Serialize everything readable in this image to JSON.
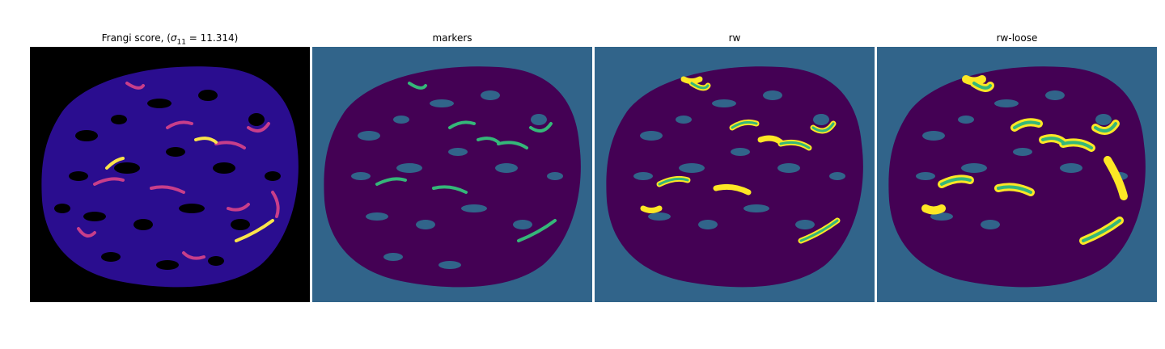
{
  "panels": [
    {
      "title_prefix": "Frangi score, (",
      "sigma_symbol": "σ",
      "sigma_sub": "11",
      "title_suffix": " = 11.314)"
    },
    {
      "title": "markers"
    },
    {
      "title": "rw"
    },
    {
      "title": "rw-loose"
    }
  ],
  "colors": {
    "frangi_background": "#000000",
    "frangi_low": "#2a0d8f",
    "frangi_mid": "#c83e8a",
    "frangi_high": "#fbe34a",
    "label_background": "#31648a",
    "label_tissue": "#440154",
    "label_marker": "#35b779",
    "label_segment": "#fde725"
  }
}
